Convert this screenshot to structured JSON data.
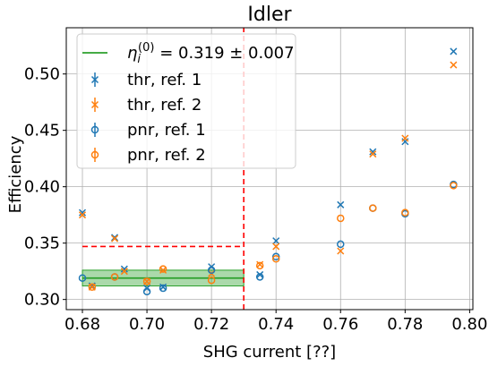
{
  "chart_data": {
    "type": "scatter",
    "title": "Idler",
    "xlabel": "SHG current [??]",
    "ylabel": "Efficiency",
    "xlim": [
      0.675,
      0.801
    ],
    "ylim": [
      0.291,
      0.541
    ],
    "xticks": [
      0.68,
      0.7,
      0.72,
      0.74,
      0.76,
      0.78,
      0.8
    ],
    "xtick_labels": [
      "0.68",
      "0.70",
      "0.72",
      "0.74",
      "0.76",
      "0.78",
      "0.80"
    ],
    "yticks": [
      0.3,
      0.35,
      0.4,
      0.45,
      0.5
    ],
    "ytick_labels": [
      "0.30",
      "0.35",
      "0.40",
      "0.45",
      "0.50"
    ],
    "grid": true,
    "legend_position": "upper-left",
    "colors": {
      "blue": "#1f77b4",
      "orange": "#ff7f0e",
      "green": "#2ca02c",
      "red": "#ff0000"
    },
    "series": [
      {
        "name": "thr, ref. 1",
        "marker": "x",
        "color": "#1f77b4",
        "x": [
          0.68,
          0.683,
          0.69,
          0.693,
          0.7,
          0.705,
          0.72,
          0.735,
          0.74,
          0.76,
          0.77,
          0.78,
          0.795
        ],
        "y": [
          0.377,
          0.312,
          0.355,
          0.327,
          0.31,
          0.311,
          0.329,
          0.322,
          0.352,
          0.384,
          0.431,
          0.44,
          0.52
        ]
      },
      {
        "name": "thr, ref. 2",
        "marker": "x",
        "color": "#ff7f0e",
        "x": [
          0.68,
          0.683,
          0.69,
          0.693,
          0.7,
          0.705,
          0.72,
          0.735,
          0.74,
          0.76,
          0.77,
          0.78,
          0.795
        ],
        "y": [
          0.375,
          0.311,
          0.354,
          0.325,
          0.316,
          0.326,
          0.323,
          0.331,
          0.347,
          0.343,
          0.429,
          0.443,
          0.508
        ]
      },
      {
        "name": "pnr, ref. 1",
        "marker": "o",
        "color": "#1f77b4",
        "x": [
          0.68,
          0.69,
          0.7,
          0.705,
          0.72,
          0.735,
          0.74,
          0.76,
          0.77,
          0.78,
          0.795
        ],
        "y": [
          0.319,
          0.32,
          0.307,
          0.31,
          0.326,
          0.32,
          0.338,
          0.349,
          0.381,
          0.376,
          0.402
        ]
      },
      {
        "name": "pnr, ref. 2",
        "marker": "o",
        "color": "#ff7f0e",
        "x": [
          0.683,
          0.69,
          0.7,
          0.705,
          0.72,
          0.735,
          0.74,
          0.76,
          0.77,
          0.78,
          0.795
        ],
        "y": [
          0.311,
          0.32,
          0.316,
          0.327,
          0.317,
          0.33,
          0.336,
          0.372,
          0.381,
          0.377,
          0.401
        ]
      }
    ],
    "mean_line": {
      "label": "η_i^(0) = 0.319 ± 0.007",
      "label_base": "η",
      "label_sub": "i",
      "label_sup": "(0)",
      "label_rest": " = 0.319 ± 0.007",
      "y": 0.319,
      "err": 0.007,
      "x_start": 0.68,
      "x_end": 0.73,
      "color": "#2ca02c"
    },
    "reference_lines": {
      "vertical_x": 0.73,
      "vertical_y_range": [
        0.291,
        0.541
      ],
      "horizontal_y": 0.347,
      "horizontal_x_range": [
        0.68,
        0.73
      ],
      "color": "#ff0000"
    }
  }
}
